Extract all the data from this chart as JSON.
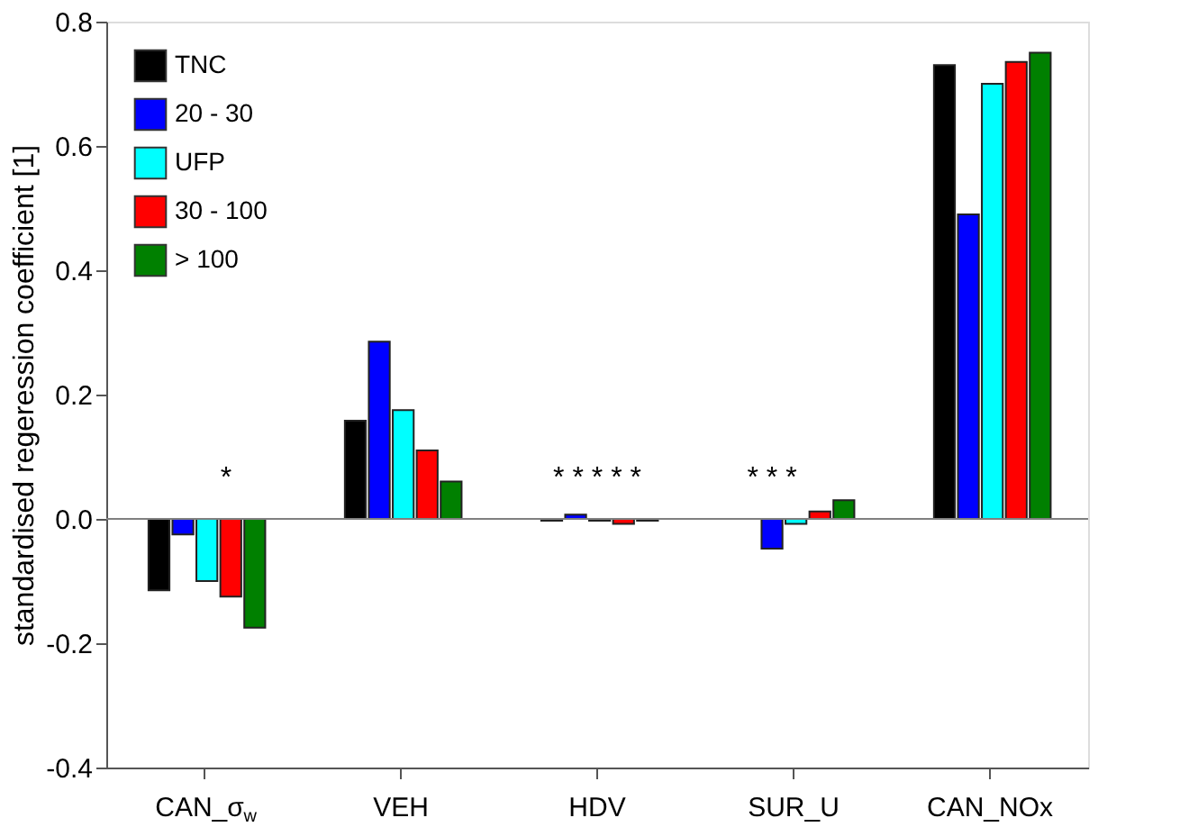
{
  "chart_data": {
    "type": "bar",
    "ylabel": "standardised regeression coefficient [1]",
    "categories": [
      "CAN_σ$_{w}$",
      "VEH",
      "HDV",
      "SUR_U",
      "CAN_NOx"
    ],
    "series": [
      {
        "name": "TNC",
        "color": "#000000",
        "values": [
          -0.115,
          0.158,
          -0.003,
          null,
          0.73
        ]
      },
      {
        "name": "20 - 30",
        "color": "#0000ff",
        "values": [
          -0.025,
          0.285,
          0.007,
          -0.048,
          0.49
        ]
      },
      {
        "name": "UFP",
        "color": "#00ffff",
        "values": [
          -0.1,
          0.175,
          -0.003,
          -0.008,
          0.7
        ]
      },
      {
        "name": "30 - 100",
        "color": "#ff0000",
        "values": [
          -0.125,
          0.11,
          -0.008,
          0.012,
          0.735
        ]
      },
      {
        "name": "> 100",
        "color": "#008000",
        "values": [
          -0.175,
          0.06,
          -0.003,
          0.03,
          0.75
        ]
      }
    ],
    "ylim": [
      -0.4,
      0.8
    ],
    "yticks": [
      {
        "value": -0.4,
        "label": "-0.4"
      },
      {
        "value": -0.2,
        "label": "-0.2"
      },
      {
        "value": 0,
        "label": "0.0"
      },
      {
        "value": 0.2,
        "label": "0.2"
      },
      {
        "value": 0.4,
        "label": "0.4"
      },
      {
        "value": 0.6,
        "label": "0.6"
      },
      {
        "value": 0.8,
        "label": "0.8"
      }
    ],
    "ref_lines": [
      {
        "axis": "y",
        "value": 0,
        "color": "#808080"
      }
    ],
    "annotations": [
      "*",
      "* * * * *",
      "* * *"
    ],
    "legend": "top left",
    "grid": false
  }
}
